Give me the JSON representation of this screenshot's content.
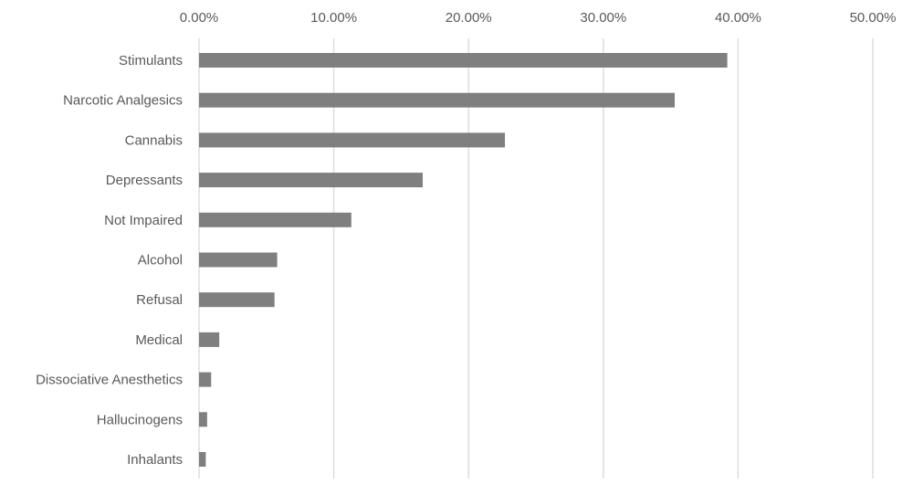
{
  "chart_data": {
    "type": "bar",
    "orientation": "horizontal",
    "categories": [
      "Stimulants",
      "Narcotic Analgesics",
      "Cannabis",
      "Depressants",
      "Not Impaired",
      "Alcohol",
      "Refusal",
      "Medical",
      "Dissociative Anesthetics",
      "Hallucinogens",
      "Inhalants"
    ],
    "values": [
      39.2,
      35.3,
      22.7,
      16.6,
      11.3,
      5.8,
      5.6,
      1.5,
      0.9,
      0.6,
      0.5
    ],
    "xlim": [
      0,
      50
    ],
    "ticks": [
      0,
      10,
      20,
      30,
      40,
      50
    ],
    "tick_labels": [
      "0.00%",
      "10.00%",
      "20.00%",
      "30.00%",
      "40.00%",
      "50.00%"
    ],
    "axis_position": "top",
    "grid": true,
    "title": "",
    "xlabel": "",
    "ylabel": "",
    "bar_color": "#7f7f7f",
    "grid_color": "#d9d9d9",
    "text_color": "#595959"
  }
}
